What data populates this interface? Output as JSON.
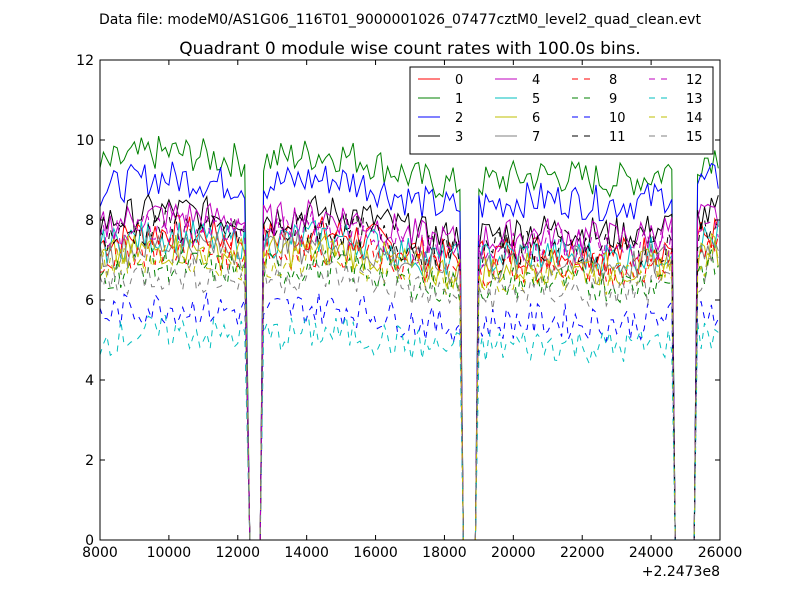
{
  "chart_data": {
    "type": "line",
    "suptitle": "Data file: modeM0/AS1G06_116T01_9000001026_07477cztM0_level2_quad_clean.evt",
    "title": "Quadrant 0 module wise count rates with 100.0s bins.",
    "xlabel": "",
    "ylabel": "",
    "x_offset_label": "+2.2473e8",
    "xlim": [
      8000,
      26000
    ],
    "ylim": [
      0,
      12
    ],
    "xticks": [
      8000,
      10000,
      12000,
      14000,
      16000,
      18000,
      20000,
      22000,
      24000,
      26000
    ],
    "yticks": [
      0,
      2,
      4,
      6,
      8,
      10,
      12
    ],
    "bin_seconds": 100,
    "legend_position": "upper-right",
    "legend_columns": 4,
    "segments": [
      [
        8000,
        12250
      ],
      [
        12750,
        18450
      ],
      [
        19000,
        24600
      ],
      [
        25350,
        26000
      ]
    ],
    "segment_boundary_value": 0,
    "series": [
      {
        "name": "0",
        "color": "#ff0000",
        "style": "solid",
        "level": 7.4
      },
      {
        "name": "1",
        "color": "#008000",
        "style": "solid",
        "level": 9.3
      },
      {
        "name": "2",
        "color": "#0000ff",
        "style": "solid",
        "level": 8.7
      },
      {
        "name": "3",
        "color": "#000000",
        "style": "solid",
        "level": 7.9
      },
      {
        "name": "4",
        "color": "#bf00bf",
        "style": "solid",
        "level": 7.8
      },
      {
        "name": "5",
        "color": "#00bfbf",
        "style": "solid",
        "level": 7.3
      },
      {
        "name": "6",
        "color": "#bfbf00",
        "style": "solid",
        "level": 7.0
      },
      {
        "name": "7",
        "color": "#808080",
        "style": "solid",
        "level": 7.1
      },
      {
        "name": "8",
        "color": "#ff0000",
        "style": "dashed",
        "level": 7.0
      },
      {
        "name": "9",
        "color": "#008000",
        "style": "dashed",
        "level": 6.6
      },
      {
        "name": "10",
        "color": "#0000ff",
        "style": "dashed",
        "level": 5.6
      },
      {
        "name": "11",
        "color": "#000000",
        "style": "dashed",
        "level": 7.5
      },
      {
        "name": "12",
        "color": "#bf00bf",
        "style": "dashed",
        "level": 7.5
      },
      {
        "name": "13",
        "color": "#00bfbf",
        "style": "dashed",
        "level": 5.0
      },
      {
        "name": "14",
        "color": "#bfbf00",
        "style": "dashed",
        "level": 6.8
      },
      {
        "name": "15",
        "color": "#808080",
        "style": "dashed",
        "level": 6.4
      }
    ]
  }
}
